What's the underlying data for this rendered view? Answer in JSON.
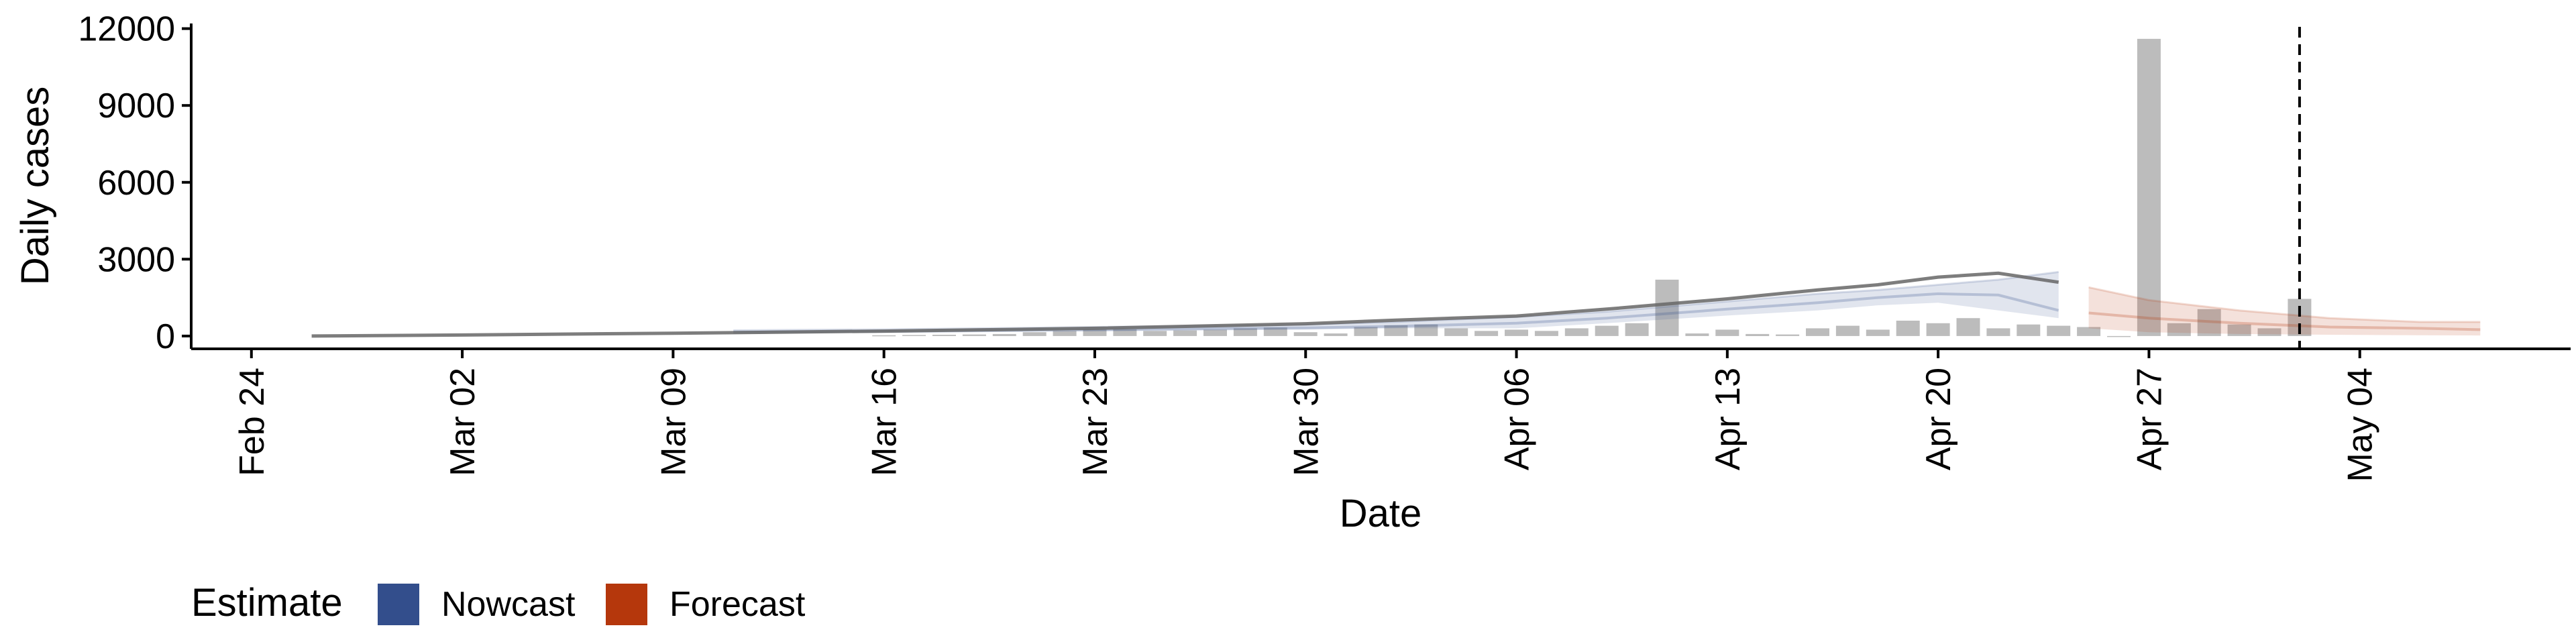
{
  "chart_data": {
    "type": "bar",
    "title": "",
    "xlabel": "Date",
    "ylabel": "Daily cases",
    "x_tick_labels": [
      "Feb 24",
      "Mar 02",
      "Mar 09",
      "Mar 16",
      "Mar 23",
      "Mar 30",
      "Apr 06",
      "Apr 13",
      "Apr 20",
      "Apr 27",
      "May 04"
    ],
    "x_ticks": [
      "2020-02-24",
      "2020-03-02",
      "2020-03-09",
      "2020-03-16",
      "2020-03-23",
      "2020-03-30",
      "2020-04-06",
      "2020-04-13",
      "2020-04-20",
      "2020-04-27",
      "2020-05-04"
    ],
    "x_range": [
      "2020-02-22",
      "2020-05-11"
    ],
    "y_ticks": [
      0,
      3000,
      6000,
      9000,
      12000
    ],
    "y_tick_labels": [
      "0",
      "3000",
      "6000",
      "9000",
      "12000"
    ],
    "ylim": [
      -500,
      12200
    ],
    "grid": false,
    "reference_line": {
      "date": "2020-05-02",
      "style": "dashed"
    },
    "reported_cases": {
      "dates": [
        "2020-03-16",
        "2020-03-17",
        "2020-03-18",
        "2020-03-19",
        "2020-03-20",
        "2020-03-21",
        "2020-03-22",
        "2020-03-23",
        "2020-03-24",
        "2020-03-25",
        "2020-03-26",
        "2020-03-27",
        "2020-03-28",
        "2020-03-29",
        "2020-03-30",
        "2020-03-31",
        "2020-04-01",
        "2020-04-02",
        "2020-04-03",
        "2020-04-04",
        "2020-04-05",
        "2020-04-06",
        "2020-04-07",
        "2020-04-08",
        "2020-04-09",
        "2020-04-10",
        "2020-04-11",
        "2020-04-12",
        "2020-04-13",
        "2020-04-14",
        "2020-04-15",
        "2020-04-16",
        "2020-04-17",
        "2020-04-18",
        "2020-04-19",
        "2020-04-20",
        "2020-04-21",
        "2020-04-22",
        "2020-04-23",
        "2020-04-24",
        "2020-04-25",
        "2020-04-26",
        "2020-04-27",
        "2020-04-28",
        "2020-04-29",
        "2020-04-30",
        "2020-05-01",
        "2020-05-02"
      ],
      "values": [
        30,
        40,
        50,
        60,
        80,
        150,
        200,
        250,
        260,
        200,
        220,
        250,
        300,
        330,
        150,
        100,
        350,
        420,
        450,
        300,
        200,
        250,
        200,
        300,
        400,
        500,
        2200,
        100,
        250,
        80,
        60,
        300,
        400,
        250,
        600,
        500,
        700,
        300,
        450,
        400,
        350,
        0,
        11600,
        500,
        1050,
        450,
        300,
        1450
      ]
    },
    "series": [
      {
        "name": "Nowcast",
        "color": "#334e8c",
        "dates": [
          "2020-03-11",
          "2020-03-16",
          "2020-03-23",
          "2020-03-30",
          "2020-04-02",
          "2020-04-06",
          "2020-04-09",
          "2020-04-13",
          "2020-04-16",
          "2020-04-18",
          "2020-04-20",
          "2020-04-22",
          "2020-04-24"
        ],
        "median": [
          150,
          180,
          250,
          320,
          380,
          500,
          700,
          1050,
          1300,
          1500,
          1650,
          1600,
          1000
        ],
        "lower": [
          100,
          120,
          180,
          250,
          300,
          300,
          500,
          800,
          1000,
          1200,
          1300,
          1000,
          700
        ],
        "upper": [
          220,
          260,
          350,
          450,
          550,
          750,
          950,
          1350,
          1650,
          1800,
          2000,
          2200,
          2500
        ]
      },
      {
        "name": "Forecast",
        "color": "#b5370c",
        "dates": [
          "2020-04-25",
          "2020-04-27",
          "2020-04-30",
          "2020-05-03",
          "2020-05-06",
          "2020-05-08"
        ],
        "median": [
          900,
          700,
          500,
          350,
          300,
          250
        ],
        "lower": [
          300,
          150,
          80,
          50,
          30,
          20
        ],
        "upper": [
          1900,
          1400,
          1000,
          700,
          550,
          550
        ]
      }
    ],
    "history_line": {
      "dates": [
        "2020-02-26",
        "2020-03-02",
        "2020-03-09",
        "2020-03-16",
        "2020-03-23",
        "2020-03-30",
        "2020-04-02",
        "2020-04-06",
        "2020-04-09",
        "2020-04-13",
        "2020-04-16",
        "2020-04-18",
        "2020-04-20",
        "2020-04-22",
        "2020-04-24"
      ],
      "values": [
        0,
        40,
        110,
        190,
        300,
        480,
        620,
        780,
        1050,
        1450,
        1800,
        2000,
        2300,
        2450,
        2100
      ]
    },
    "legend": {
      "title": "Estimate",
      "placement": "bottom-left",
      "items": [
        "Nowcast",
        "Forecast"
      ]
    }
  },
  "legend_colors": {
    "Nowcast": "#334e8c",
    "Forecast": "#b5370c"
  }
}
